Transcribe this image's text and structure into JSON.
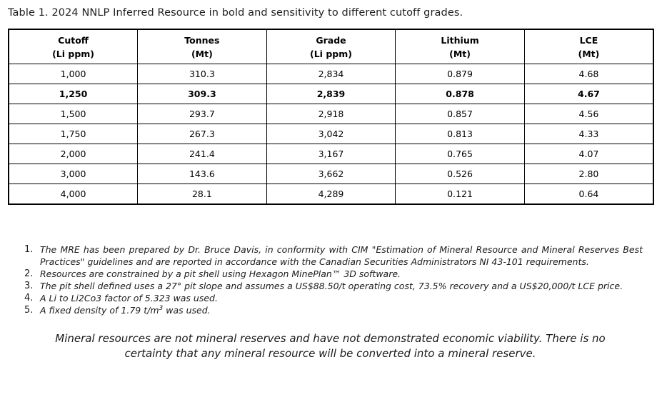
{
  "page": {
    "title": "Table 1. 2024 NNLP Inferred Resource in bold and sensitivity to different cutoff grades."
  },
  "table": {
    "columns": [
      {
        "name": "Cutoff",
        "unit": "(Li ppm)"
      },
      {
        "name": "Tonnes",
        "unit": "(Mt)"
      },
      {
        "name": "Grade",
        "unit": "(Li ppm)"
      },
      {
        "name": "Lithium",
        "unit": "(Mt)"
      },
      {
        "name": "LCE",
        "unit": "(Mt)"
      }
    ],
    "rows": [
      [
        "1,000",
        "310.3",
        "2,834",
        "0.879",
        "4.68"
      ],
      [
        "1,250",
        "309.3",
        "2,839",
        "0.878",
        "4.67"
      ],
      [
        "1,500",
        "293.7",
        "2,918",
        "0.857",
        "4.56"
      ],
      [
        "1,750",
        "267.3",
        "3,042",
        "0.813",
        "4.33"
      ],
      [
        "2,000",
        "241.4",
        "3,167",
        "0.765",
        "4.07"
      ],
      [
        "3,000",
        "143.6",
        "3,662",
        "0.526",
        "2.80"
      ],
      [
        "4,000",
        "28.1",
        "4,289",
        "0.121",
        "0.64"
      ]
    ],
    "bold_row_index": 1
  },
  "footnotes": {
    "items": [
      {
        "number": "1.",
        "text": "The MRE has been prepared by Dr. Bruce Davis, in conformity with CIM \"Estimation of Mineral Resource and Mineral Reserves Best Practices\" guidelines and are reported in accordance with the Canadian Securities Administrators NI 43-101 requirements."
      },
      {
        "number": "2.",
        "text": "Resources are constrained by a pit shell using Hexagon MinePlan™ 3D software."
      },
      {
        "number": "3.",
        "text": "The pit shell defined uses a 27° pit slope and assumes a US$88.50/t operating cost, 73.5% recovery and a US$20,000/t LCE price."
      },
      {
        "number": "4.",
        "text": "A Li to Li2Co3 factor of 5.323 was used."
      },
      {
        "number": "5.",
        "text_before": "A fixed density of 1.79 t/m",
        "sup": "3",
        "text_after": " was used."
      }
    ]
  },
  "disclaimer": {
    "line1": "Mineral resources are not mineral reserves and have not demonstrated economic viability. There is no",
    "line2": "certainty that any mineral resource will be converted into a mineral reserve."
  },
  "colors": {
    "text": "#1a1a1a",
    "table_border": "#000000",
    "background": "#ffffff"
  }
}
